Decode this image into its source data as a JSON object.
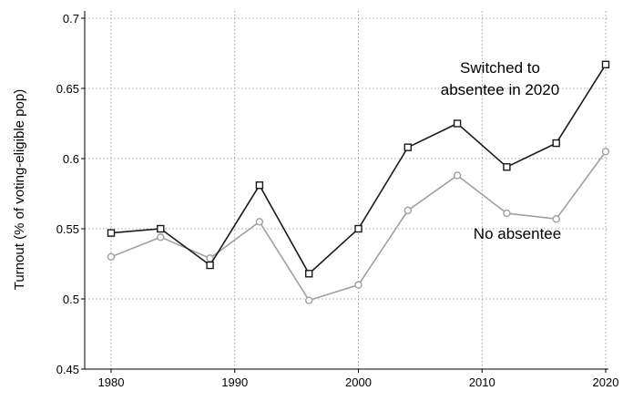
{
  "chart_data": {
    "type": "line",
    "title": "",
    "xlabel": "",
    "ylabel": "Turnout (% of voting-eligible pop)",
    "xlim": [
      1980,
      2020
    ],
    "ylim": [
      0.45,
      0.7
    ],
    "xticks": [
      1980,
      1990,
      2000,
      2010,
      2020
    ],
    "yticks": [
      0.45,
      0.5,
      0.55,
      0.6,
      0.65,
      0.7
    ],
    "ytick_labels": [
      "0.45",
      "0.5",
      "0.55",
      "0.6",
      "0.65",
      "0.7"
    ],
    "grid": true,
    "x": [
      1980,
      1984,
      1988,
      1992,
      1996,
      2000,
      2004,
      2008,
      2012,
      2016,
      2020
    ],
    "series": [
      {
        "name": "Switched to absentee in 2020",
        "label_lines": [
          "Switched to",
          "absentee in 2020"
        ],
        "marker": "square",
        "color": "#1a1a1a",
        "values": [
          0.547,
          0.55,
          0.524,
          0.581,
          0.518,
          0.55,
          0.608,
          0.625,
          0.594,
          0.611,
          0.667
        ]
      },
      {
        "name": "No absentee",
        "label_lines": [
          "No absentee"
        ],
        "marker": "circle",
        "color": "#a0a0a0",
        "values": [
          0.53,
          0.544,
          0.529,
          0.555,
          0.499,
          0.51,
          0.563,
          0.588,
          0.561,
          0.557,
          0.605
        ]
      }
    ]
  }
}
